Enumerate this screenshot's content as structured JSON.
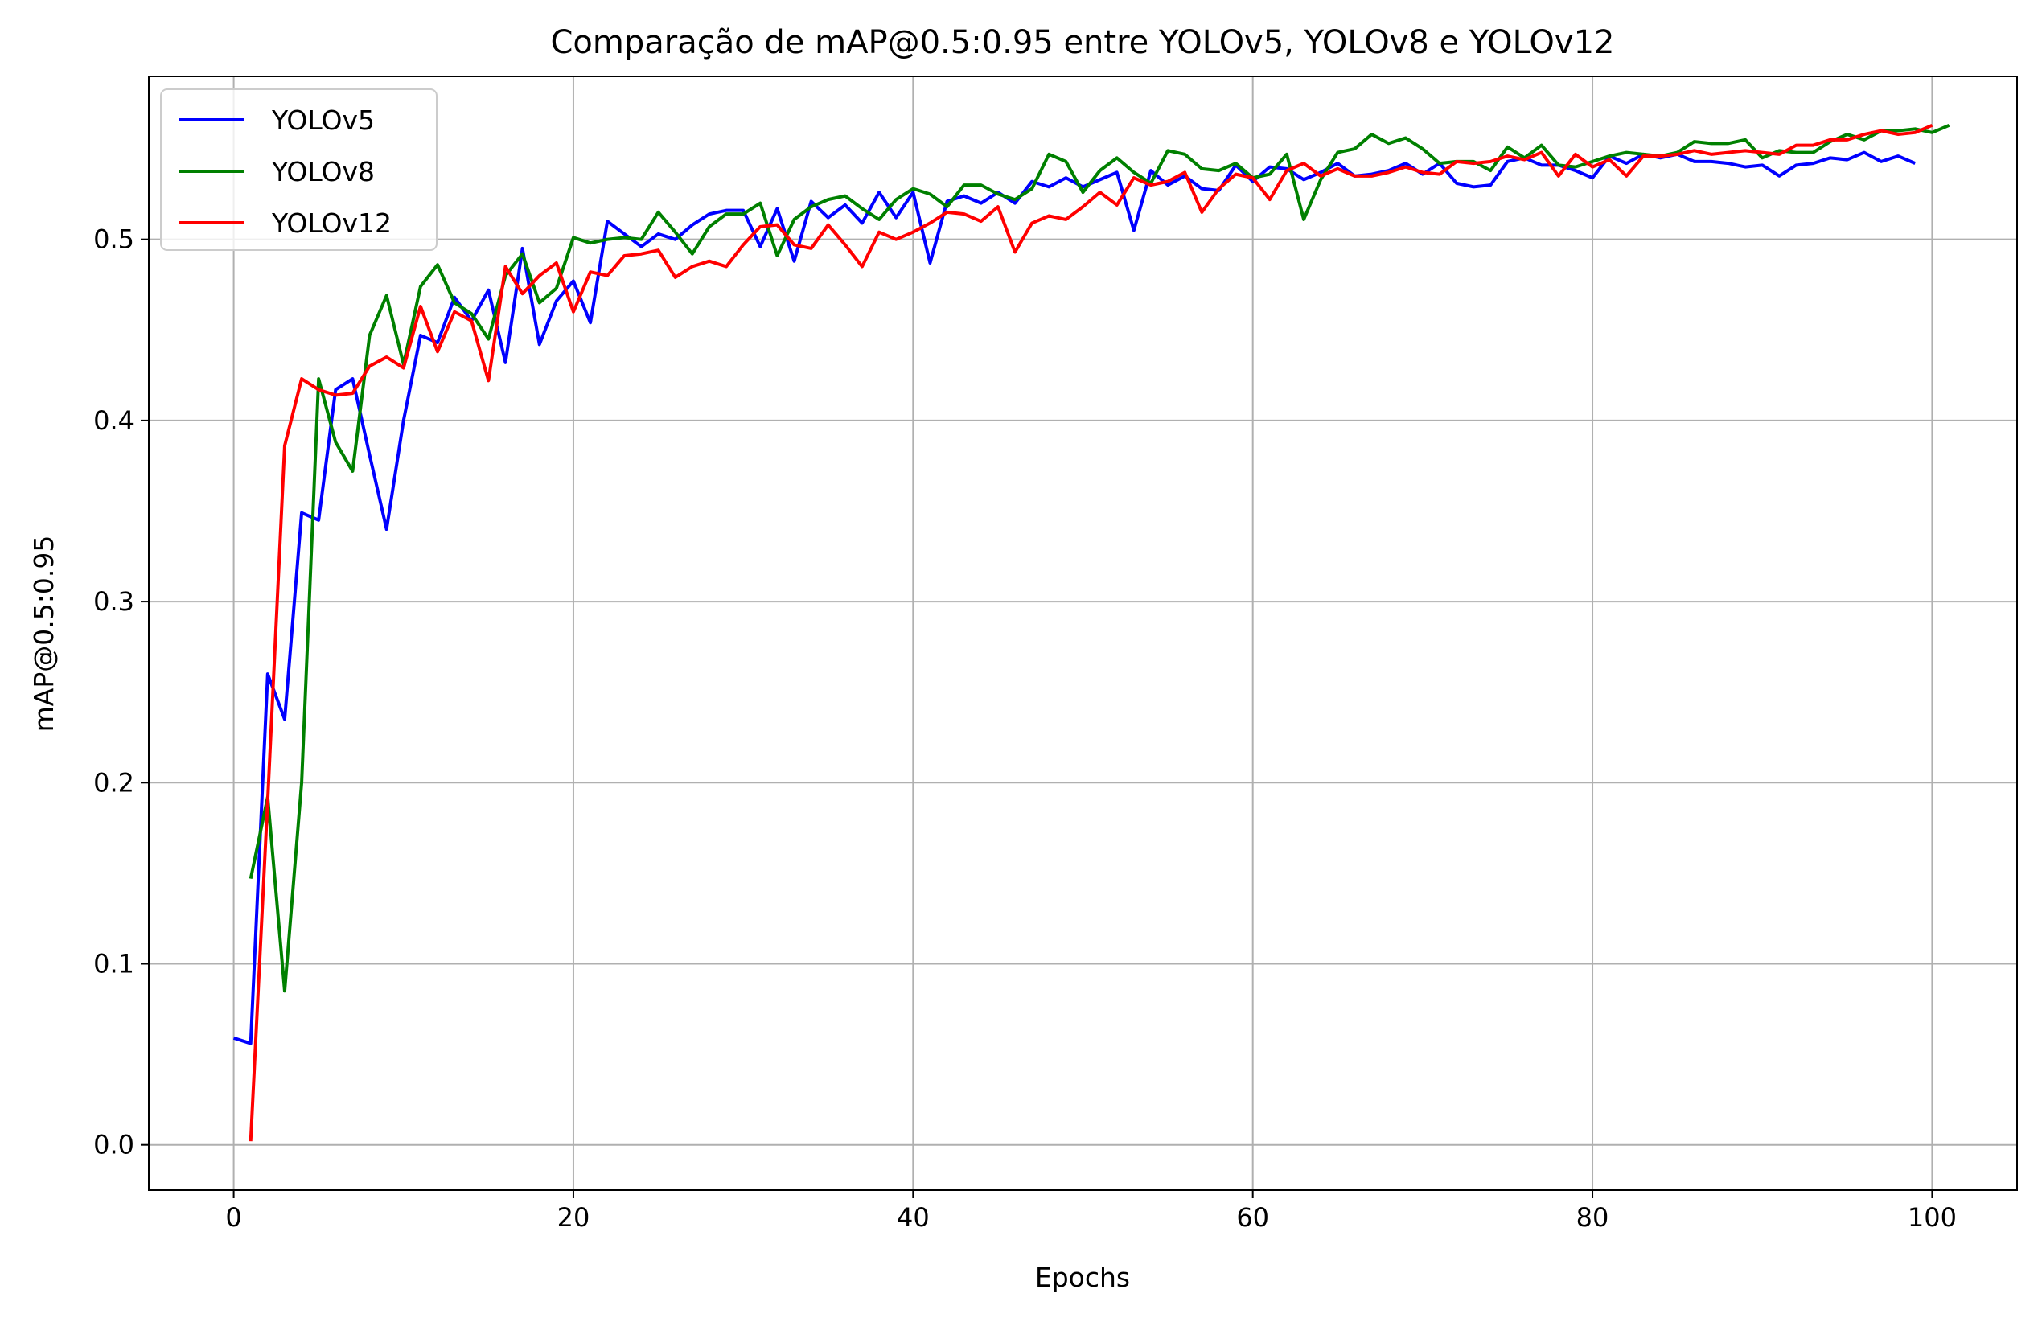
{
  "chart_data": {
    "type": "line",
    "title": "Comparação de mAP@0.5:0.95 entre YOLOv5, YOLOv8 e YOLOv12",
    "xlabel": "Epochs",
    "ylabel": "mAP@0.5:0.95",
    "xlim": [
      -5,
      105
    ],
    "ylim": [
      -0.025,
      0.59
    ],
    "xticks": [
      0,
      20,
      40,
      60,
      80,
      100
    ],
    "yticks": [
      0.0,
      0.1,
      0.2,
      0.3,
      0.4,
      0.5
    ],
    "xtick_labels": [
      "0",
      "20",
      "40",
      "60",
      "80",
      "100"
    ],
    "ytick_labels": [
      "0.0",
      "0.1",
      "0.2",
      "0.3",
      "0.4",
      "0.5"
    ],
    "grid": true,
    "legend_position": "top-left",
    "series": [
      {
        "name": "YOLOv5",
        "color": "#0000ff",
        "x_start": 0,
        "values": [
          0.059,
          0.056,
          0.26,
          0.235,
          0.349,
          0.345,
          0.417,
          0.423,
          0.381,
          0.34,
          0.4,
          0.447,
          0.443,
          0.468,
          0.455,
          0.472,
          0.432,
          0.495,
          0.442,
          0.466,
          0.477,
          0.454,
          0.51,
          0.503,
          0.496,
          0.503,
          0.5,
          0.508,
          0.514,
          0.516,
          0.516,
          0.496,
          0.517,
          0.488,
          0.521,
          0.512,
          0.519,
          0.509,
          0.526,
          0.512,
          0.526,
          0.487,
          0.521,
          0.524,
          0.52,
          0.526,
          0.52,
          0.532,
          0.529,
          0.534,
          0.529,
          0.533,
          0.537,
          0.505,
          0.538,
          0.53,
          0.535,
          0.528,
          0.527,
          0.541,
          0.532,
          0.54,
          0.539,
          0.533,
          0.537,
          0.542,
          0.535,
          0.536,
          0.538,
          0.542,
          0.536,
          0.542,
          0.531,
          0.529,
          0.53,
          0.543,
          0.545,
          0.541,
          0.541,
          0.538,
          0.534,
          0.546,
          0.542,
          0.547,
          0.545,
          0.547,
          0.543,
          0.543,
          0.542,
          0.54,
          0.541,
          0.535,
          0.541,
          0.542,
          0.545,
          0.544,
          0.548,
          0.543,
          0.546,
          0.542
        ]
      },
      {
        "name": "YOLOv8",
        "color": "#008000",
        "x_start": 1,
        "values": [
          0.147,
          0.192,
          0.085,
          0.2,
          0.423,
          0.388,
          0.372,
          0.447,
          0.469,
          0.431,
          0.474,
          0.486,
          0.465,
          0.459,
          0.445,
          0.48,
          0.492,
          0.465,
          0.473,
          0.501,
          0.498,
          0.5,
          0.501,
          0.5,
          0.515,
          0.504,
          0.492,
          0.507,
          0.514,
          0.514,
          0.52,
          0.491,
          0.511,
          0.518,
          0.522,
          0.524,
          0.517,
          0.511,
          0.522,
          0.528,
          0.525,
          0.518,
          0.53,
          0.53,
          0.525,
          0.522,
          0.528,
          0.547,
          0.543,
          0.526,
          0.538,
          0.545,
          0.537,
          0.531,
          0.549,
          0.547,
          0.539,
          0.538,
          0.542,
          0.534,
          0.536,
          0.547,
          0.511,
          0.533,
          0.548,
          0.55,
          0.558,
          0.553,
          0.556,
          0.55,
          0.542,
          0.543,
          0.543,
          0.538,
          0.551,
          0.545,
          0.552,
          0.541,
          0.54,
          0.543,
          0.546,
          0.548,
          0.547,
          0.546,
          0.548,
          0.554,
          0.553,
          0.553,
          0.555,
          0.545,
          0.549,
          0.548,
          0.548,
          0.554,
          0.558,
          0.555,
          0.56,
          0.56,
          0.561,
          0.559,
          0.563
        ]
      },
      {
        "name": "YOLOv12",
        "color": "#ff0000",
        "x_start": 1,
        "values": [
          0.002,
          0.19,
          0.386,
          0.423,
          0.417,
          0.414,
          0.415,
          0.43,
          0.435,
          0.429,
          0.463,
          0.438,
          0.46,
          0.455,
          0.422,
          0.485,
          0.47,
          0.48,
          0.487,
          0.46,
          0.482,
          0.48,
          0.491,
          0.492,
          0.494,
          0.479,
          0.485,
          0.488,
          0.485,
          0.497,
          0.507,
          0.508,
          0.497,
          0.495,
          0.508,
          0.497,
          0.485,
          0.504,
          0.5,
          0.504,
          0.509,
          0.515,
          0.514,
          0.51,
          0.518,
          0.493,
          0.509,
          0.513,
          0.511,
          0.518,
          0.526,
          0.519,
          0.534,
          0.53,
          0.532,
          0.537,
          0.515,
          0.528,
          0.536,
          0.534,
          0.522,
          0.538,
          0.542,
          0.535,
          0.539,
          0.535,
          0.535,
          0.537,
          0.54,
          0.537,
          0.536,
          0.543,
          0.542,
          0.543,
          0.546,
          0.544,
          0.548,
          0.535,
          0.547,
          0.54,
          0.544,
          0.535,
          0.546,
          0.546,
          0.547,
          0.549,
          0.547,
          0.548,
          0.549,
          0.548,
          0.547,
          0.552,
          0.552,
          0.555,
          0.555,
          0.558,
          0.56,
          0.558,
          0.559,
          0.563
        ]
      }
    ]
  }
}
